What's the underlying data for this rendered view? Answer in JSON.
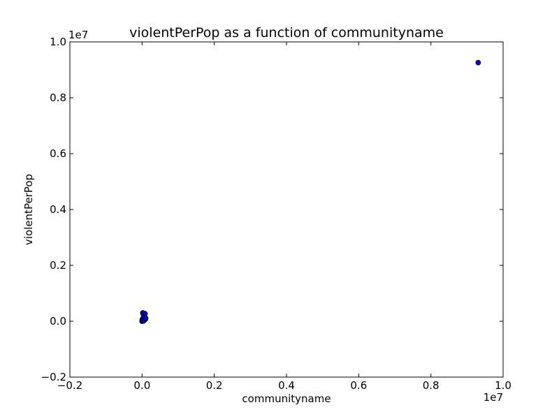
{
  "chart_data": {
    "type": "scatter",
    "title": "violentPerPop as a function of communityname",
    "xlabel": "communityname",
    "ylabel": "violentPerPop",
    "x_offset_label": "1e7",
    "y_offset_label": "1e7",
    "xlim": [
      -0.2,
      1.0
    ],
    "ylim": [
      -0.2,
      1.0
    ],
    "x_ticks": [
      -0.2,
      0.0,
      0.2,
      0.4,
      0.6,
      0.8,
      1.0
    ],
    "y_ticks": [
      -0.2,
      0.0,
      0.2,
      0.4,
      0.6,
      0.8,
      1.0
    ],
    "x_tick_labels": [
      "−0.2",
      "0.0",
      "0.2",
      "0.4",
      "0.6",
      "0.8",
      "1.0"
    ],
    "y_tick_labels": [
      "−0.2",
      "0.0",
      "0.2",
      "0.4",
      "0.6",
      "0.8",
      "1.0"
    ],
    "grid": false,
    "marker_color": "#0000cc",
    "marker_edge_color": "#000000",
    "series": [
      {
        "x": [
          0.0,
          0.001,
          0.002,
          0.0005,
          0.003,
          0.004,
          0.006,
          0.008,
          0.005,
          0.007,
          0.002,
          0.001,
          0.003,
          0.009,
          0.006,
          0.004,
          0.008,
          0.01,
          0.007,
          0.005,
          0.003,
          0.002,
          0.006,
          0.009,
          0.931
        ],
        "y": [
          0.0,
          0.002,
          0.004,
          0.006,
          0.008,
          0.01,
          0.012,
          0.015,
          0.02,
          0.025,
          0.03,
          0.003,
          0.005,
          0.007,
          0.018,
          0.022,
          0.027,
          0.01,
          0.005,
          0.002,
          0.001,
          0.009,
          0.014,
          0.011,
          0.926
        ]
      }
    ]
  }
}
